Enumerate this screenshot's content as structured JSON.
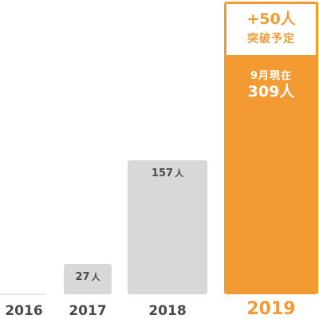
{
  "chart_data": {
    "type": "bar",
    "categories": [
      "2016",
      "2017",
      "2018",
      "2019"
    ],
    "values": [
      0,
      27,
      157,
      309
    ],
    "unit": "人",
    "highlight": {
      "category": "2019",
      "note_top_line1": "+50人",
      "note_top_line2": "突破予定",
      "note_inner_line1": "9月現在",
      "note_inner_line2": "309人"
    },
    "colors": {
      "bar": "#d8d8d8",
      "highlight": "#f39a33",
      "text": "#4a4a4a",
      "axis": "#cccccc"
    }
  }
}
